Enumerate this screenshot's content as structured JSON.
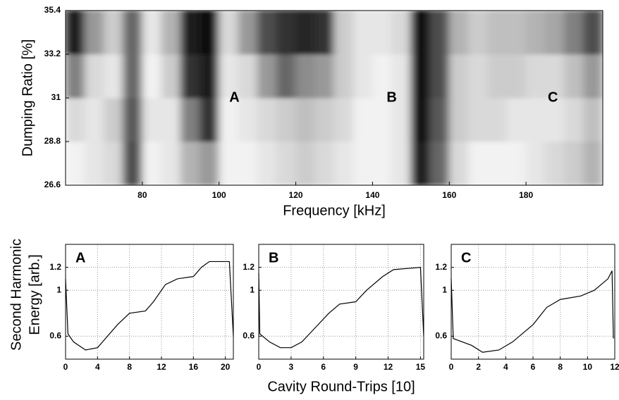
{
  "chart_data": [
    {
      "type": "heatmap",
      "xlabel": "Frequency [kHz]",
      "ylabel": "Dumping Ratio [%]",
      "xlim": [
        60,
        200
      ],
      "xticks": [
        80,
        100,
        120,
        140,
        160,
        180
      ],
      "ylim": [
        26.6,
        35.4
      ],
      "yticks": [
        26.6,
        28.8,
        31,
        33.2,
        35.4
      ],
      "x": [
        62.5,
        67.5,
        72.5,
        77.5,
        82.5,
        87.5,
        92.5,
        97.5,
        102.5,
        107.5,
        112.5,
        117.5,
        122.5,
        127.5,
        132.5,
        137.5,
        142.5,
        147.5,
        152.5,
        157.5,
        162.5,
        167.5,
        172.5,
        177.5,
        182.5,
        187.5,
        192.5,
        197.5
      ],
      "y": [
        27.7,
        29.9,
        32.1,
        34.3
      ],
      "z": [
        [
          0.95,
          0.9,
          0.85,
          0.3,
          0.95,
          0.9,
          0.7,
          0.6,
          0.95,
          0.95,
          0.9,
          0.85,
          0.8,
          0.85,
          0.9,
          0.95,
          0.95,
          0.9,
          0.1,
          0.4,
          0.85,
          0.95,
          0.95,
          0.95,
          0.9,
          0.85,
          0.8,
          0.7
        ],
        [
          0.85,
          0.9,
          0.8,
          0.35,
          0.9,
          0.9,
          0.5,
          0.2,
          0.95,
          0.9,
          0.85,
          0.8,
          0.75,
          0.8,
          0.85,
          0.95,
          0.95,
          0.9,
          0.05,
          0.35,
          0.8,
          0.85,
          0.85,
          0.9,
          0.9,
          0.9,
          0.85,
          0.75
        ],
        [
          0.5,
          0.85,
          0.9,
          0.4,
          0.95,
          0.8,
          0.2,
          0.1,
          0.9,
          0.85,
          0.6,
          0.4,
          0.55,
          0.6,
          0.8,
          0.9,
          0.95,
          0.9,
          0.05,
          0.3,
          0.8,
          0.85,
          0.8,
          0.8,
          0.85,
          0.85,
          0.75,
          0.6
        ],
        [
          0.1,
          0.6,
          0.8,
          0.4,
          0.9,
          0.7,
          0.1,
          0.05,
          0.85,
          0.6,
          0.3,
          0.2,
          0.15,
          0.2,
          0.8,
          0.9,
          0.9,
          0.85,
          0.05,
          0.3,
          0.7,
          0.8,
          0.75,
          0.75,
          0.7,
          0.65,
          0.5,
          0.3
        ]
      ],
      "annotations": [
        {
          "text": "A",
          "x": 104,
          "y": 31
        },
        {
          "text": "B",
          "x": 145,
          "y": 31
        },
        {
          "text": "C",
          "x": 187,
          "y": 31
        }
      ]
    },
    {
      "type": "line",
      "title": "A",
      "ylabel": [
        "Second Harmonic",
        "Energy [arb.]"
      ],
      "color": "#000000",
      "grid": true,
      "xlim": [
        0,
        21
      ],
      "xticks": [
        0,
        4,
        8,
        12,
        16,
        20
      ],
      "ylim": [
        0.4,
        1.4
      ],
      "yticks": [
        0.6,
        1,
        1.2
      ],
      "x": [
        0,
        0.3,
        1,
        2.5,
        4,
        5,
        6.5,
        8,
        10,
        11,
        12.5,
        14,
        16,
        17,
        18,
        20.5,
        21
      ],
      "values": [
        1.1,
        0.62,
        0.55,
        0.48,
        0.5,
        0.58,
        0.7,
        0.8,
        0.82,
        0.9,
        1.05,
        1.1,
        1.12,
        1.2,
        1.25,
        1.25,
        0.6
      ]
    },
    {
      "type": "line",
      "title": "B",
      "xlabel": "Cavity Round-Trips [10]",
      "color": "#000000",
      "grid": true,
      "xlim": [
        0,
        15.3
      ],
      "xticks": [
        0,
        3,
        6,
        9,
        12,
        15
      ],
      "ylim": [
        0.4,
        1.4
      ],
      "yticks": [
        0.6,
        1,
        1.2
      ],
      "x": [
        0,
        0.1,
        1,
        2,
        3,
        4,
        5,
        6.5,
        7.5,
        9,
        10,
        11.5,
        12.5,
        15,
        15.3
      ],
      "values": [
        1.15,
        0.62,
        0.55,
        0.5,
        0.5,
        0.55,
        0.65,
        0.8,
        0.88,
        0.9,
        1.0,
        1.12,
        1.18,
        1.2,
        0.6
      ]
    },
    {
      "type": "line",
      "title": "C",
      "color": "#000000",
      "grid": true,
      "xlim": [
        0,
        12
      ],
      "xticks": [
        0,
        2,
        4,
        6,
        8,
        10,
        12
      ],
      "ylim": [
        0.4,
        1.4
      ],
      "yticks": [
        0.6,
        1,
        1.2
      ],
      "x": [
        0,
        0.15,
        1.5,
        2.3,
        3.5,
        4.5,
        6,
        7,
        8,
        9.5,
        10.5,
        11.5,
        11.8,
        11.9
      ],
      "values": [
        1.1,
        0.58,
        0.52,
        0.46,
        0.48,
        0.55,
        0.7,
        0.85,
        0.92,
        0.95,
        1.0,
        1.1,
        1.17,
        0.58
      ]
    }
  ]
}
